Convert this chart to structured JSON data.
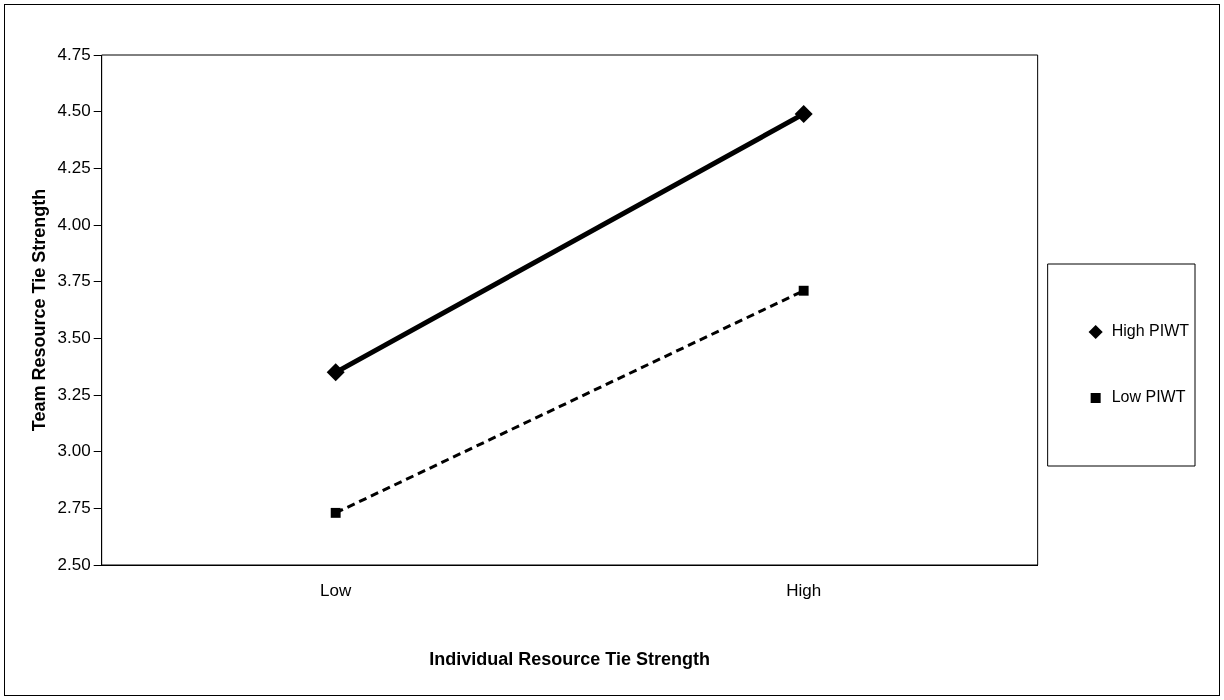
{
  "chart_data": {
    "type": "line",
    "xlabel": "Individual Resource Tie Strength",
    "ylabel": "Team Resource Tie Strength",
    "categories": [
      "Low",
      "High"
    ],
    "series": [
      {
        "name": "High PIWT",
        "color": "#000000",
        "values": [
          3.35,
          4.49
        ],
        "marker": "diamond",
        "line_style": "solid"
      },
      {
        "name": "Low PIWT",
        "color": "#000000",
        "values": [
          2.73,
          3.71
        ],
        "marker": "square",
        "line_style": "dashed"
      }
    ],
    "ylim": [
      2.5,
      4.75
    ],
    "yticks": [
      {
        "value": 2.5,
        "label": "2.50"
      },
      {
        "value": 2.75,
        "label": "2.75"
      },
      {
        "value": 3,
        "label": "3.00"
      },
      {
        "value": 3.25,
        "label": "3.25"
      },
      {
        "value": 3.5,
        "label": "3.50"
      },
      {
        "value": 3.75,
        "label": "3.75"
      },
      {
        "value": 4,
        "label": "4.00"
      },
      {
        "value": 4.25,
        "label": "4.25"
      },
      {
        "value": 4.5,
        "label": "4.50"
      },
      {
        "value": 4.75,
        "label": "4.75"
      }
    ],
    "grid": false,
    "legend": "right"
  }
}
